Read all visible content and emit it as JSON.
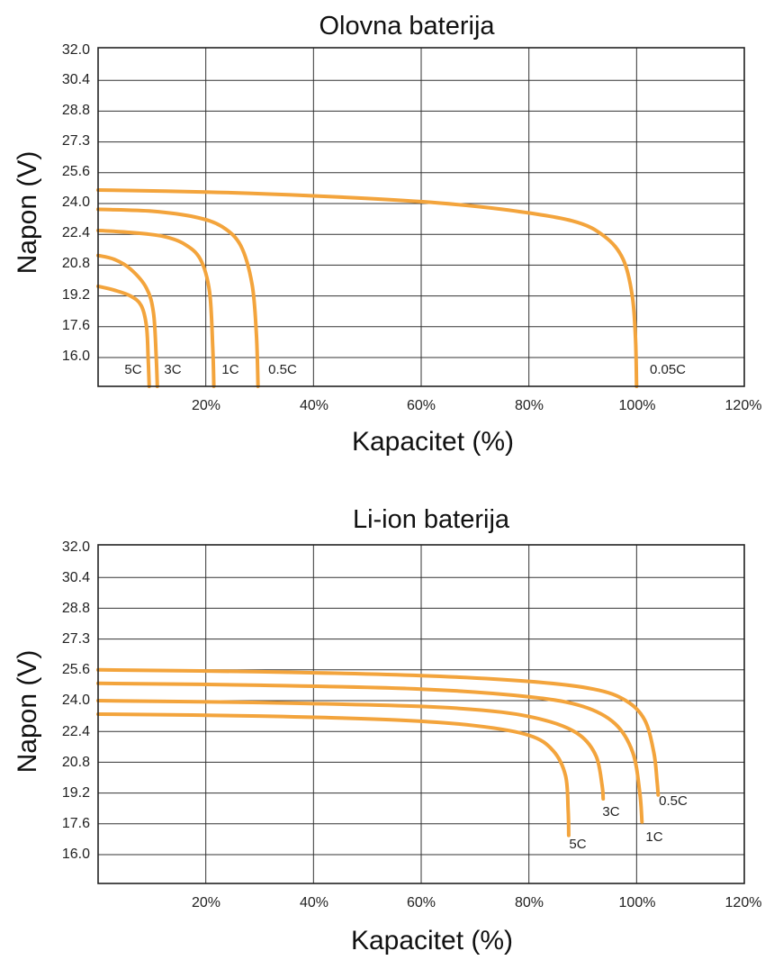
{
  "chart_data": [
    {
      "type": "line",
      "title": "Olovna baterija",
      "xlabel": "Kapacitet (%)",
      "ylabel": "Napon (V)",
      "x_ticks": [
        "20%",
        "40%",
        "60%",
        "80%",
        "100%",
        "120%"
      ],
      "y_ticks": [
        "32.0",
        "30.4",
        "28.8",
        "27.3",
        "25.6",
        "24.0",
        "22.4",
        "20.8",
        "19.2",
        "17.6",
        "16.0"
      ],
      "xlim": [
        0,
        120
      ],
      "grid": true,
      "series_color": "#f3a43c",
      "series": [
        {
          "name": "5C",
          "x": [
            0,
            3,
            6,
            8,
            9,
            9.3,
            9.5
          ],
          "y": [
            19.7,
            19.5,
            19.2,
            18.7,
            17.6,
            16.0,
            14.6
          ]
        },
        {
          "name": "3C",
          "x": [
            0,
            3,
            6,
            9,
            10.3,
            10.8,
            11
          ],
          "y": [
            21.3,
            21.1,
            20.6,
            19.6,
            18.3,
            16.0,
            14.6
          ]
        },
        {
          "name": "1C",
          "x": [
            0,
            6,
            12,
            16,
            19,
            20.7,
            21.3,
            21.5
          ],
          "y": [
            22.6,
            22.5,
            22.3,
            21.9,
            21.1,
            19.4,
            16.5,
            14.6
          ]
        },
        {
          "name": "0.5C",
          "x": [
            0,
            10,
            18,
            23,
            26.5,
            28.6,
            29.4,
            29.7
          ],
          "y": [
            23.7,
            23.6,
            23.3,
            22.8,
            21.8,
            19.8,
            17.2,
            14.6
          ]
        },
        {
          "name": "0.05C",
          "x": [
            0,
            20,
            40,
            60,
            75,
            88,
            94,
            97.5,
            99.2,
            99.8,
            100
          ],
          "y": [
            24.7,
            24.6,
            24.4,
            24.1,
            23.7,
            23.1,
            22.3,
            21.1,
            19.2,
            17.0,
            14.6
          ]
        }
      ],
      "curve_labels": [
        "5C",
        "3C",
        "1C",
        "0.5C",
        "0.05C"
      ]
    },
    {
      "type": "line",
      "title": "Li-ion baterija",
      "xlabel": "Kapacitet (%)",
      "ylabel": "Napon (V)",
      "x_ticks": [
        "20%",
        "40%",
        "60%",
        "80%",
        "100%",
        "120%"
      ],
      "y_ticks": [
        "32.0",
        "30.4",
        "28.8",
        "27.3",
        "25.6",
        "24.0",
        "22.4",
        "20.8",
        "19.2",
        "17.6",
        "16.0"
      ],
      "xlim": [
        0,
        120
      ],
      "grid": true,
      "series_color": "#f3a43c",
      "series": [
        {
          "name": "0.5C",
          "x": [
            0,
            30,
            60,
            80,
            92,
            98,
            101.5,
            103.2,
            103.8,
            104
          ],
          "y": [
            25.6,
            25.5,
            25.3,
            25.0,
            24.6,
            24.0,
            23.0,
            21.3,
            19.8,
            19.1
          ]
        },
        {
          "name": "1C",
          "x": [
            0,
            30,
            60,
            80,
            90,
            96,
            99.3,
            100.6,
            101
          ],
          "y": [
            24.9,
            24.8,
            24.6,
            24.2,
            23.7,
            22.8,
            21.3,
            19.2,
            17.7
          ]
        },
        {
          "name": "3C",
          "x": [
            0,
            30,
            60,
            75,
            84,
            89.5,
            92.5,
            93.6,
            93.8
          ],
          "y": [
            24.0,
            23.9,
            23.7,
            23.4,
            22.9,
            22.2,
            21.1,
            19.6,
            18.9
          ]
        },
        {
          "name": "5C",
          "x": [
            0,
            30,
            55,
            70,
            80,
            84.5,
            86.8,
            87.3,
            87.4
          ],
          "y": [
            23.3,
            23.2,
            23.0,
            22.7,
            22.2,
            21.4,
            20.1,
            18.3,
            17.0
          ]
        }
      ],
      "curve_labels": [
        "5C",
        "3C",
        "1C",
        "0.5C"
      ]
    }
  ]
}
